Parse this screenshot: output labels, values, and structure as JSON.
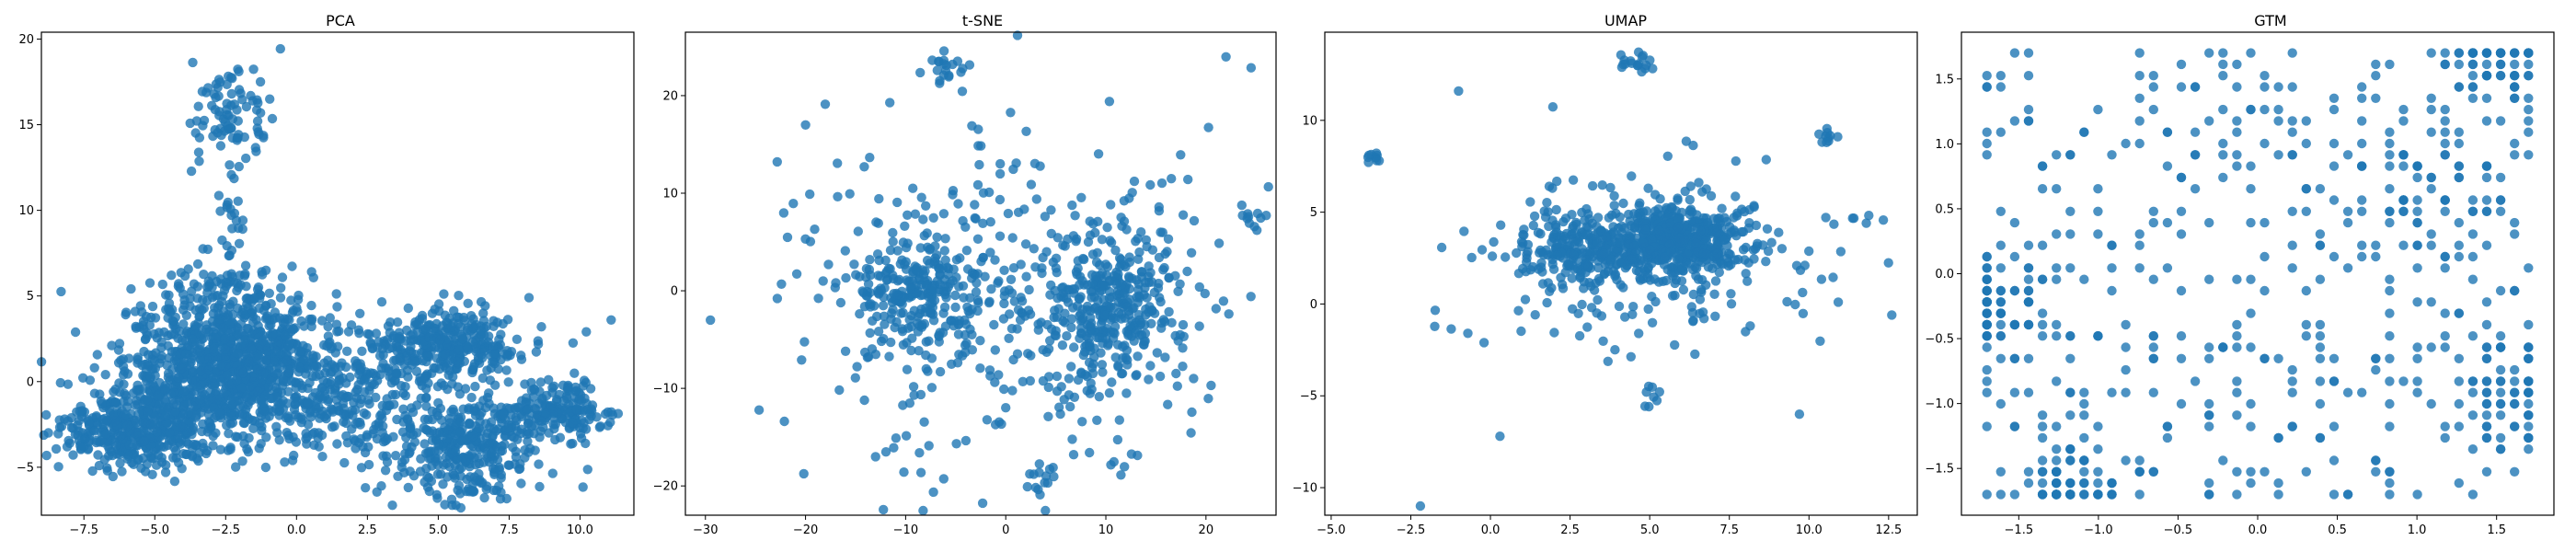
{
  "chart_data": [
    {
      "type": "scatter",
      "title": "PCA",
      "xlabel": "",
      "ylabel": "",
      "xlim": [
        -9.0,
        11.9
      ],
      "ylim": [
        -7.8,
        20.4
      ],
      "xticks": [
        -7.5,
        -5.0,
        -2.5,
        0.0,
        2.5,
        5.0,
        7.5,
        10.0
      ],
      "xtick_labels": [
        "−7.5",
        "−5.0",
        "−2.5",
        "0.0",
        "2.5",
        "5.0",
        "7.5",
        "10.0"
      ],
      "yticks": [
        -5,
        0,
        5,
        10,
        15,
        20
      ],
      "ytick_labels": [
        "−5",
        "0",
        "5",
        "10",
        "15",
        "20"
      ],
      "grid": false,
      "color": "#1f77b4",
      "clusters": [
        {
          "cx": -2.0,
          "cy": 0.5,
          "sx": 2.0,
          "sy": 1.8,
          "n": 900
        },
        {
          "cx": -5.5,
          "cy": -2.8,
          "sx": 1.5,
          "sy": 1.1,
          "n": 450
        },
        {
          "cx": -2.5,
          "cy": 3.5,
          "sx": 1.5,
          "sy": 1.8,
          "n": 250
        },
        {
          "cx": -2.3,
          "cy": 15.5,
          "sx": 0.7,
          "sy": 2.0,
          "n": 90
        },
        {
          "cx": -2.3,
          "cy": 10.0,
          "sx": 0.3,
          "sy": 2.0,
          "n": 20
        },
        {
          "cx": 5.3,
          "cy": 2.2,
          "sx": 1.3,
          "sy": 1.0,
          "n": 320
        },
        {
          "cx": 6.0,
          "cy": -4.0,
          "sx": 1.3,
          "sy": 1.6,
          "n": 320
        },
        {
          "cx": 9.0,
          "cy": -1.8,
          "sx": 1.2,
          "sy": 0.8,
          "n": 200
        },
        {
          "cx": 2.5,
          "cy": -1.5,
          "sx": 1.5,
          "sy": 1.8,
          "n": 180
        }
      ],
      "extra_points": [
        [
          11.1,
          3.6
        ],
        [
          8.2,
          4.9
        ],
        [
          -8.0,
          -3.6
        ],
        [
          -7.6,
          -3.9
        ]
      ]
    },
    {
      "type": "scatter",
      "title": "t-SNE",
      "xlabel": "",
      "ylabel": "",
      "xlim": [
        -32.0,
        27.0
      ],
      "ylim": [
        -23.0,
        26.5
      ],
      "xticks": [
        -30,
        -20,
        -10,
        0,
        10,
        20
      ],
      "xtick_labels": [
        "−30",
        "−20",
        "−10",
        "0",
        "10",
        "20"
      ],
      "yticks": [
        -20,
        -10,
        0,
        10,
        20
      ],
      "ytick_labels": [
        "−20",
        "−10",
        "0",
        "10",
        "20"
      ],
      "grid": false,
      "color": "#1f77b4",
      "clusters": [
        {
          "cx": -9.0,
          "cy": 0.0,
          "sx": 3.0,
          "sy": 3.0,
          "n": 220
        },
        {
          "cx": 10.5,
          "cy": -1.5,
          "sx": 3.2,
          "sy": 3.5,
          "n": 300
        },
        {
          "cx": 0.0,
          "cy": 0.0,
          "sx": 11.0,
          "sy": 9.0,
          "n": 380
        },
        {
          "cx": -6.0,
          "cy": 22.5,
          "sx": 1.0,
          "sy": 0.8,
          "n": 20
        },
        {
          "cx": 3.5,
          "cy": -19.5,
          "sx": 0.8,
          "sy": 1.3,
          "n": 15
        },
        {
          "cx": 24.5,
          "cy": 7.0,
          "sx": 0.8,
          "sy": 0.8,
          "n": 10
        }
      ],
      "extra_points": [
        [
          -29.5,
          -3.0
        ],
        [
          -20.0,
          17.0
        ],
        [
          -16.0,
          -6.2
        ],
        [
          -13.0,
          -17.0
        ]
      ]
    },
    {
      "type": "scatter",
      "title": "UMAP",
      "xlabel": "",
      "ylabel": "",
      "xlim": [
        -5.2,
        13.4
      ],
      "ylim": [
        -11.5,
        14.8
      ],
      "xticks": [
        -5.0,
        -2.5,
        0.0,
        2.5,
        5.0,
        7.5,
        10.0,
        12.5
      ],
      "xtick_labels": [
        "−5.0",
        "−2.5",
        "0.0",
        "2.5",
        "5.0",
        "7.5",
        "10.0",
        "12.5"
      ],
      "yticks": [
        -10,
        -5,
        0,
        5,
        10
      ],
      "ytick_labels": [
        "−10",
        "−5",
        "0",
        "5",
        "10"
      ],
      "grid": false,
      "color": "#1f77b4",
      "clusters": [
        {
          "cx": 6.0,
          "cy": 3.5,
          "sx": 0.9,
          "sy": 1.0,
          "n": 420
        },
        {
          "cx": 3.5,
          "cy": 3.0,
          "sx": 1.2,
          "sy": 0.8,
          "n": 260
        },
        {
          "cx": 4.5,
          "cy": 2.5,
          "sx": 3.0,
          "sy": 2.5,
          "n": 220
        },
        {
          "cx": 4.7,
          "cy": 13.2,
          "sx": 0.3,
          "sy": 0.3,
          "n": 18
        },
        {
          "cx": -3.8,
          "cy": 8.0,
          "sx": 0.3,
          "sy": 0.15,
          "n": 10
        },
        {
          "cx": 10.5,
          "cy": 8.9,
          "sx": 0.25,
          "sy": 0.3,
          "n": 10
        },
        {
          "cx": 4.8,
          "cy": -5.0,
          "sx": 0.3,
          "sy": 0.4,
          "n": 8
        }
      ],
      "extra_points": [
        [
          -2.2,
          -11.0
        ],
        [
          0.3,
          -7.2
        ],
        [
          -1.0,
          11.6
        ],
        [
          12.6,
          -0.6
        ],
        [
          9.7,
          -6.0
        ],
        [
          11.8,
          4.4
        ],
        [
          -0.2,
          -2.1
        ]
      ]
    },
    {
      "type": "scatter",
      "title": "GTM",
      "xlabel": "",
      "ylabel": "",
      "xlim": [
        -1.86,
        1.86
      ],
      "ylim": [
        -1.86,
        1.86
      ],
      "xticks": [
        -1.5,
        -1.0,
        -0.5,
        0.0,
        0.5,
        1.0,
        1.5
      ],
      "xtick_labels": [
        "−1.5",
        "−1.0",
        "−0.5",
        "0.0",
        "0.5",
        "1.0",
        "1.5"
      ],
      "yticks": [
        -1.5,
        -1.0,
        -0.5,
        0.0,
        0.5,
        1.0,
        1.5
      ],
      "ytick_labels": [
        "−1.5",
        "−1.0",
        "−0.5",
        "0.0",
        "0.5",
        "1.0",
        "1.5"
      ],
      "grid": false,
      "color": "#1f77b4",
      "grid_nodes_per_side": 40,
      "grid_extent": [
        -1.7,
        1.7
      ],
      "n_points": 700,
      "dense_regions": [
        {
          "cx": 1.0,
          "cy": 0.7,
          "r": 0.5
        },
        {
          "cx": 1.5,
          "cy": 1.6,
          "r": 0.25
        },
        {
          "cx": -1.65,
          "cy": -0.3,
          "r": 0.3
        },
        {
          "cx": -1.2,
          "cy": -1.65,
          "r": 0.3
        },
        {
          "cx": 1.55,
          "cy": -0.9,
          "r": 0.35
        }
      ]
    }
  ]
}
